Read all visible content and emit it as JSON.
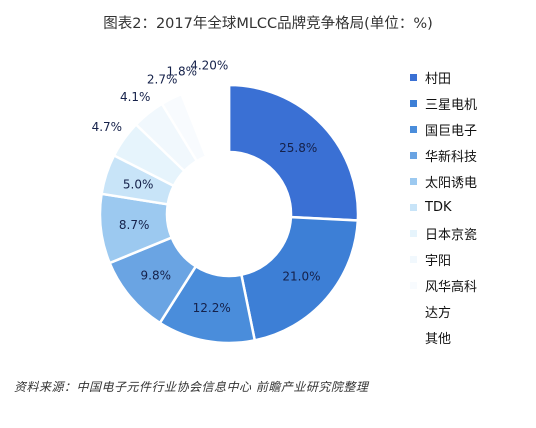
{
  "title": "图表2：2017年全球MLCC品牌竞争格局(单位：%)",
  "source": "资料来源：中国电子元件行业协会信息中心 前瞻产业研究院整理",
  "chart_data": {
    "type": "pie",
    "style": "donut",
    "title": "图表2：2017年全球MLCC品牌竞争格局(单位：%)",
    "legend_position": "right",
    "categories": [
      "村田",
      "三星电机",
      "国巨电子",
      "华新科技",
      "太阳诱电",
      "TDK",
      "日本京瓷",
      "宇阳",
      "风华高科",
      "达方",
      "其他"
    ],
    "values": [
      25.8,
      21.0,
      12.2,
      9.8,
      8.7,
      5.0,
      4.7,
      4.1,
      2.7,
      1.8,
      4.2
    ],
    "labels": [
      "25.8%",
      "21.0%",
      "12.2%",
      "9.8%",
      "8.7%",
      "5.0%",
      "4.7%",
      "4.1%",
      "2.7%",
      "1.8%",
      "4.20%"
    ],
    "colors": [
      "#3a70d4",
      "#3d7fd6",
      "#4a8ddb",
      "#6aa4e3",
      "#9cc9f0",
      "#c8e4f8",
      "#e6f4fc",
      "#f1f8fd",
      "#f8fbfe",
      "#ffffff",
      "#ffffff"
    ]
  }
}
